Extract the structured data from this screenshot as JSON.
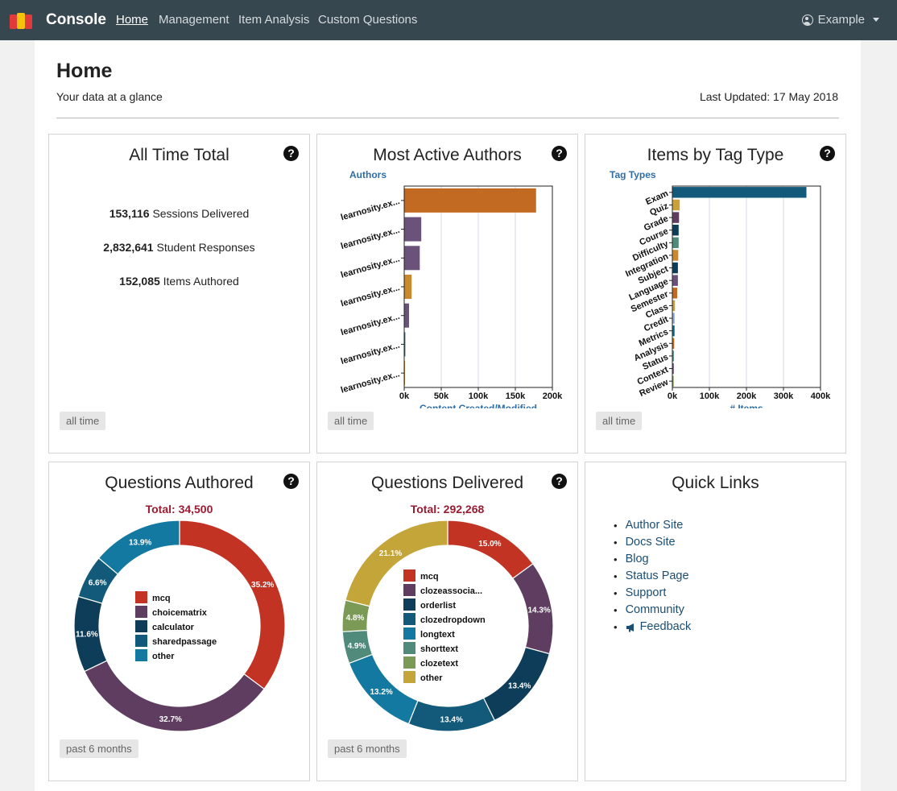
{
  "navbar": {
    "brand": "Console",
    "links": [
      "Home",
      "Management",
      "Item Analysis",
      "Custom Questions"
    ],
    "user": "Example"
  },
  "header": {
    "title": "Home",
    "subtitle": "Your data at a glance",
    "last_updated": "Last Updated: 17 May 2018"
  },
  "cards": {
    "all_time_total": {
      "title": "All Time Total",
      "badge": "all time",
      "stats": [
        {
          "value": "153,116",
          "label": "Sessions Delivered"
        },
        {
          "value": "2,832,641",
          "label": "Student Responses"
        },
        {
          "value": "152,085",
          "label": "Items Authored"
        }
      ]
    },
    "most_active_authors": {
      "title": "Most Active Authors",
      "badge": "all time"
    },
    "items_by_tag_type": {
      "title": "Items by Tag Type",
      "badge": "all time"
    },
    "questions_authored": {
      "title": "Questions Authored",
      "badge": "past 6 months",
      "total": "Total: 34,500"
    },
    "questions_delivered": {
      "title": "Questions Delivered",
      "badge": "past 6 months",
      "total": "Total: 292,268"
    },
    "quick_links": {
      "title": "Quick Links",
      "links": [
        "Author Site",
        "Docs Site",
        "Blog",
        "Status Page",
        "Support",
        "Community",
        "Feedback"
      ]
    }
  },
  "chart_data": [
    {
      "type": "bar",
      "orientation": "horizontal",
      "title": "Most Active Authors",
      "ylabel": "Authors",
      "xlabel": "Content Created/Modified",
      "categories": [
        "learnosity.ex...",
        "learnosity.ex...",
        "learnosity.ex...",
        "learnosity.ex...",
        "learnosity.ex...",
        "learnosity.ex...",
        "learnosity.ex..."
      ],
      "values": [
        178000,
        23000,
        21000,
        10000,
        6500,
        1500,
        1000
      ],
      "colors": [
        "#c36a22",
        "#6b527a",
        "#6b527a",
        "#c98a2e",
        "#6b527a",
        "#2f5f7a",
        "#c98a2e"
      ],
      "xlim": [
        0,
        200000
      ],
      "xticks": [
        "0k",
        "50k",
        "100k",
        "150k",
        "200k"
      ]
    },
    {
      "type": "bar",
      "orientation": "horizontal",
      "title": "Items by Tag Type",
      "ylabel": "Tag Types",
      "xlabel": "# Items",
      "categories": [
        "Exam",
        "Quiz",
        "Grade",
        "Course",
        "Difficulty",
        "Integration",
        "Subject",
        "Language",
        "Semester",
        "Class",
        "Credit",
        "Metrics",
        "Analysis",
        "Status",
        "Context",
        "Review"
      ],
      "values": [
        362000,
        20000,
        18000,
        17000,
        17000,
        16000,
        15000,
        15000,
        13000,
        7000,
        6000,
        6000,
        5000,
        4000,
        4000,
        3500
      ],
      "colors": [
        "#135a7a",
        "#c9a13a",
        "#5f3d61",
        "#0d3d58",
        "#4f8a7a",
        "#c98a2e",
        "#0d3d58",
        "#6b527a",
        "#c36a22",
        "#c9a13a",
        "#8fa8c8",
        "#0d6a8a",
        "#c36a22",
        "#4f8a7a",
        "#6b527a",
        "#7a9a4a"
      ],
      "xlim": [
        0,
        400000
      ],
      "xticks": [
        "0k",
        "100k",
        "200k",
        "300k",
        "400k"
      ]
    },
    {
      "type": "pie",
      "title": "Questions Authored",
      "slices": [
        {
          "name": "mcq",
          "value": 35.2,
          "color": "#c23323",
          "label": "35.2%"
        },
        {
          "name": "choicematrix",
          "value": 32.7,
          "color": "#5f3d61",
          "label": "32.7%"
        },
        {
          "name": "calculator",
          "value": 11.6,
          "color": "#0d3d58",
          "label": "11.6%"
        },
        {
          "name": "sharedpassage",
          "value": 6.6,
          "color": "#135a7a",
          "label": "6.6%"
        },
        {
          "name": "other",
          "value": 13.9,
          "color": "#1479a0",
          "label": "13.9%"
        }
      ]
    },
    {
      "type": "pie",
      "title": "Questions Delivered",
      "slices": [
        {
          "name": "mcq",
          "value": 15.0,
          "color": "#c23323",
          "label": "15.0%"
        },
        {
          "name": "clozeassocia...",
          "value": 14.3,
          "color": "#5f3d61",
          "label": "14.3%"
        },
        {
          "name": "orderlist",
          "value": 13.4,
          "color": "#0d3d58",
          "label": "13.4%"
        },
        {
          "name": "clozedropdown",
          "value": 13.4,
          "color": "#135a7a",
          "label": "13.4%"
        },
        {
          "name": "longtext",
          "value": 13.2,
          "color": "#1479a0",
          "label": "13.2%"
        },
        {
          "name": "shorttext",
          "value": 4.9,
          "color": "#4f8a7a",
          "label": "4.9%"
        },
        {
          "name": "clozetext",
          "value": 4.8,
          "color": "#7a9a55",
          "label": "4.8%"
        },
        {
          "name": "other",
          "value": 21.1,
          "color": "#c4a53a",
          "label": "21.1%"
        }
      ]
    }
  ]
}
